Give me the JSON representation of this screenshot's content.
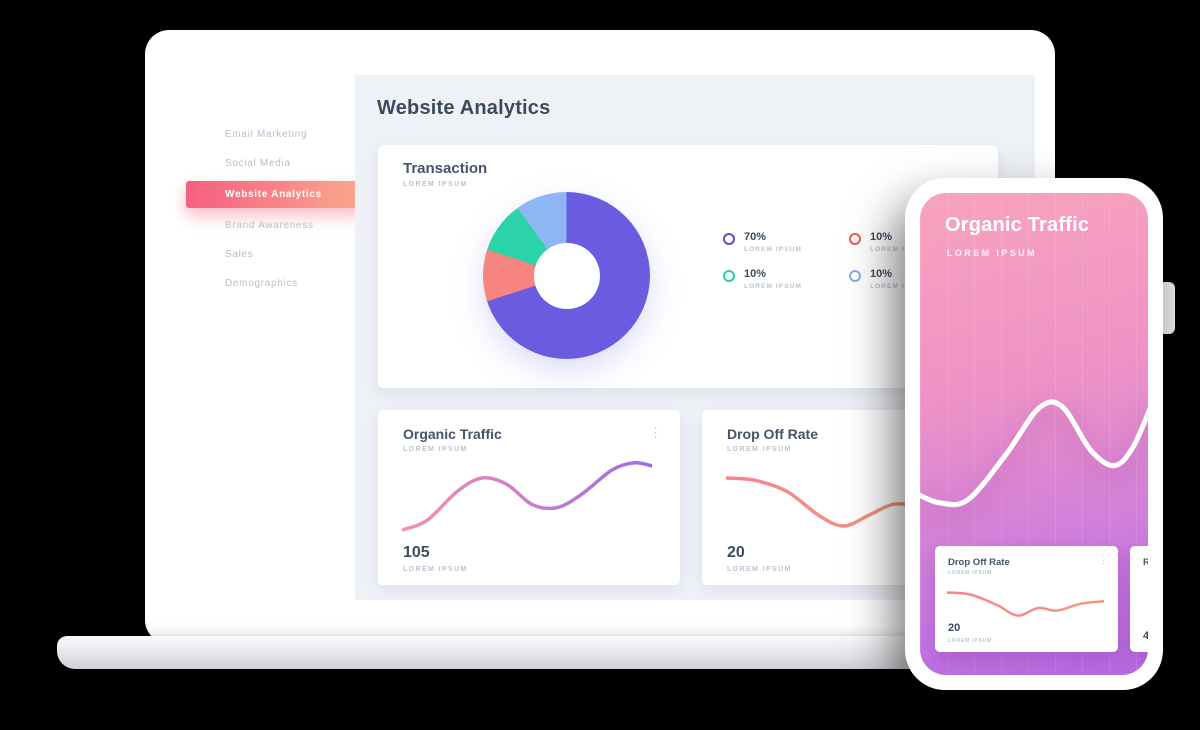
{
  "icons": {
    "kebab": "⋮"
  },
  "sidebar": {
    "items": [
      {
        "label": "Email Marketing",
        "active": false
      },
      {
        "label": "Social Media",
        "active": false
      },
      {
        "label": "Website Analytics",
        "active": true
      },
      {
        "label": "Brand Awareness",
        "active": false
      },
      {
        "label": "Sales",
        "active": false
      },
      {
        "label": "Demographics",
        "active": false
      }
    ],
    "active_gradient": [
      "#f55f80",
      "#fba88e"
    ]
  },
  "main": {
    "title": "Website Analytics",
    "transaction_card": {
      "title": "Transaction",
      "subtitle": "LOREM IPSUM",
      "legend": [
        {
          "value": "70%",
          "label": "LOREM IPSUM",
          "color": "#5a4bd8"
        },
        {
          "value": "10%",
          "label": "LOREM IPSUM",
          "color": "#f4574e"
        },
        {
          "value": "10%",
          "label": "LOREM IPSUM",
          "color": "#27cfa6"
        },
        {
          "value": "10%",
          "label": "LOREM IPSUM",
          "color": "#7fb0f5"
        }
      ]
    },
    "organic_card": {
      "title": "Organic Traffic",
      "subtitle": "LOREM IPSUM",
      "value": "105",
      "value_label": "LOREM IPSUM"
    },
    "dropoff_card": {
      "title": "Drop Off Rate",
      "subtitle": "LOREM IPSUM",
      "value": "20",
      "value_label": "LOREM IPSUM"
    }
  },
  "phone": {
    "title": "Organic Traffic",
    "subtitle": "LOREM IPSUM",
    "screen_gradient": [
      "#f8a3bd",
      "#b56ae2"
    ],
    "dropoff_card": {
      "title": "Drop Off Rate",
      "subtitle": "LOREM IPSUM",
      "value": "20",
      "value_label": "LOREM IPSUM"
    },
    "partial_card": {
      "title": "R",
      "value": "4"
    }
  },
  "chart_data": [
    {
      "id": "transaction_donut",
      "type": "pie",
      "title": "Transaction",
      "labels": [
        "LOREM IPSUM",
        "LOREM IPSUM",
        "LOREM IPSUM",
        "LOREM IPSUM"
      ],
      "values": [
        70,
        10,
        10,
        10
      ],
      "colors": [
        "#6a5be0",
        "#f5857e",
        "#2dd3a8",
        "#8fb6f4"
      ],
      "hole": 0.4,
      "legend_position": "right"
    },
    {
      "id": "organic_line",
      "type": "line",
      "title": "Organic Traffic",
      "current_value": 105,
      "points": [
        [
          0,
          0.9
        ],
        [
          0.1,
          0.78
        ],
        [
          0.22,
          0.42
        ],
        [
          0.32,
          0.25
        ],
        [
          0.42,
          0.33
        ],
        [
          0.52,
          0.58
        ],
        [
          0.62,
          0.62
        ],
        [
          0.72,
          0.45
        ],
        [
          0.84,
          0.15
        ],
        [
          0.93,
          0.06
        ],
        [
          1,
          0.1
        ]
      ],
      "stroke_gradient": [
        "#f78fae",
        "#9d6cea"
      ]
    },
    {
      "id": "dropoff_line",
      "type": "line",
      "title": "Drop Off Rate",
      "current_value": 20,
      "points": [
        [
          0,
          0.25
        ],
        [
          0.12,
          0.28
        ],
        [
          0.25,
          0.42
        ],
        [
          0.38,
          0.72
        ],
        [
          0.48,
          0.85
        ],
        [
          0.58,
          0.72
        ],
        [
          0.68,
          0.58
        ],
        [
          0.78,
          0.58
        ],
        [
          0.88,
          0.5
        ],
        [
          1,
          0.38
        ]
      ],
      "stroke_gradient": [
        "#f8838f",
        "#f29a78"
      ]
    },
    {
      "id": "phone_line",
      "type": "line",
      "title": "Organic Traffic",
      "points": [
        [
          0,
          0.7
        ],
        [
          0.1,
          0.76
        ],
        [
          0.22,
          0.74
        ],
        [
          0.38,
          0.45
        ],
        [
          0.52,
          0.15
        ],
        [
          0.62,
          0.14
        ],
        [
          0.74,
          0.42
        ],
        [
          0.84,
          0.52
        ],
        [
          0.92,
          0.4
        ],
        [
          1,
          0.12
        ]
      ],
      "stroke": "#ffffff"
    },
    {
      "id": "phone_dropoff_line",
      "type": "line",
      "title": "Drop Off Rate",
      "current_value": 20,
      "points": [
        [
          0,
          0.25
        ],
        [
          0.15,
          0.3
        ],
        [
          0.32,
          0.55
        ],
        [
          0.45,
          0.8
        ],
        [
          0.58,
          0.62
        ],
        [
          0.7,
          0.68
        ],
        [
          0.85,
          0.52
        ],
        [
          1,
          0.46
        ]
      ],
      "stroke_gradient": [
        "#f8838f",
        "#f29a78"
      ]
    }
  ]
}
